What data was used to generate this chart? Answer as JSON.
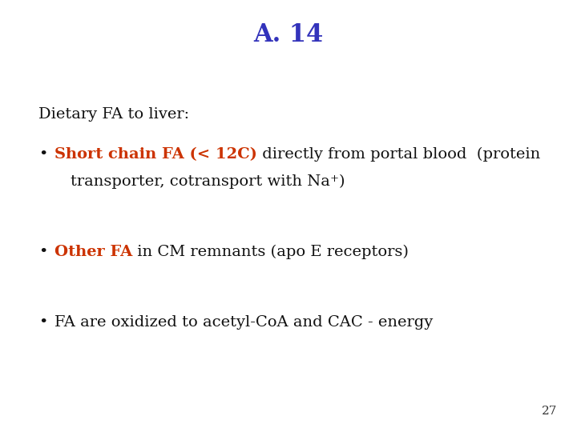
{
  "title": "A. 14",
  "title_color": "#3333BB",
  "title_fontsize": 22,
  "background_color": "#FFFFFF",
  "page_number": "27",
  "page_number_fontsize": 11,
  "page_number_color": "#333333",
  "intro_text": "Dietary FA to liver:",
  "intro_fontsize": 14,
  "intro_color": "#111111",
  "main_fontsize": 14,
  "orange_color": "#CC3300",
  "black_color": "#111111"
}
